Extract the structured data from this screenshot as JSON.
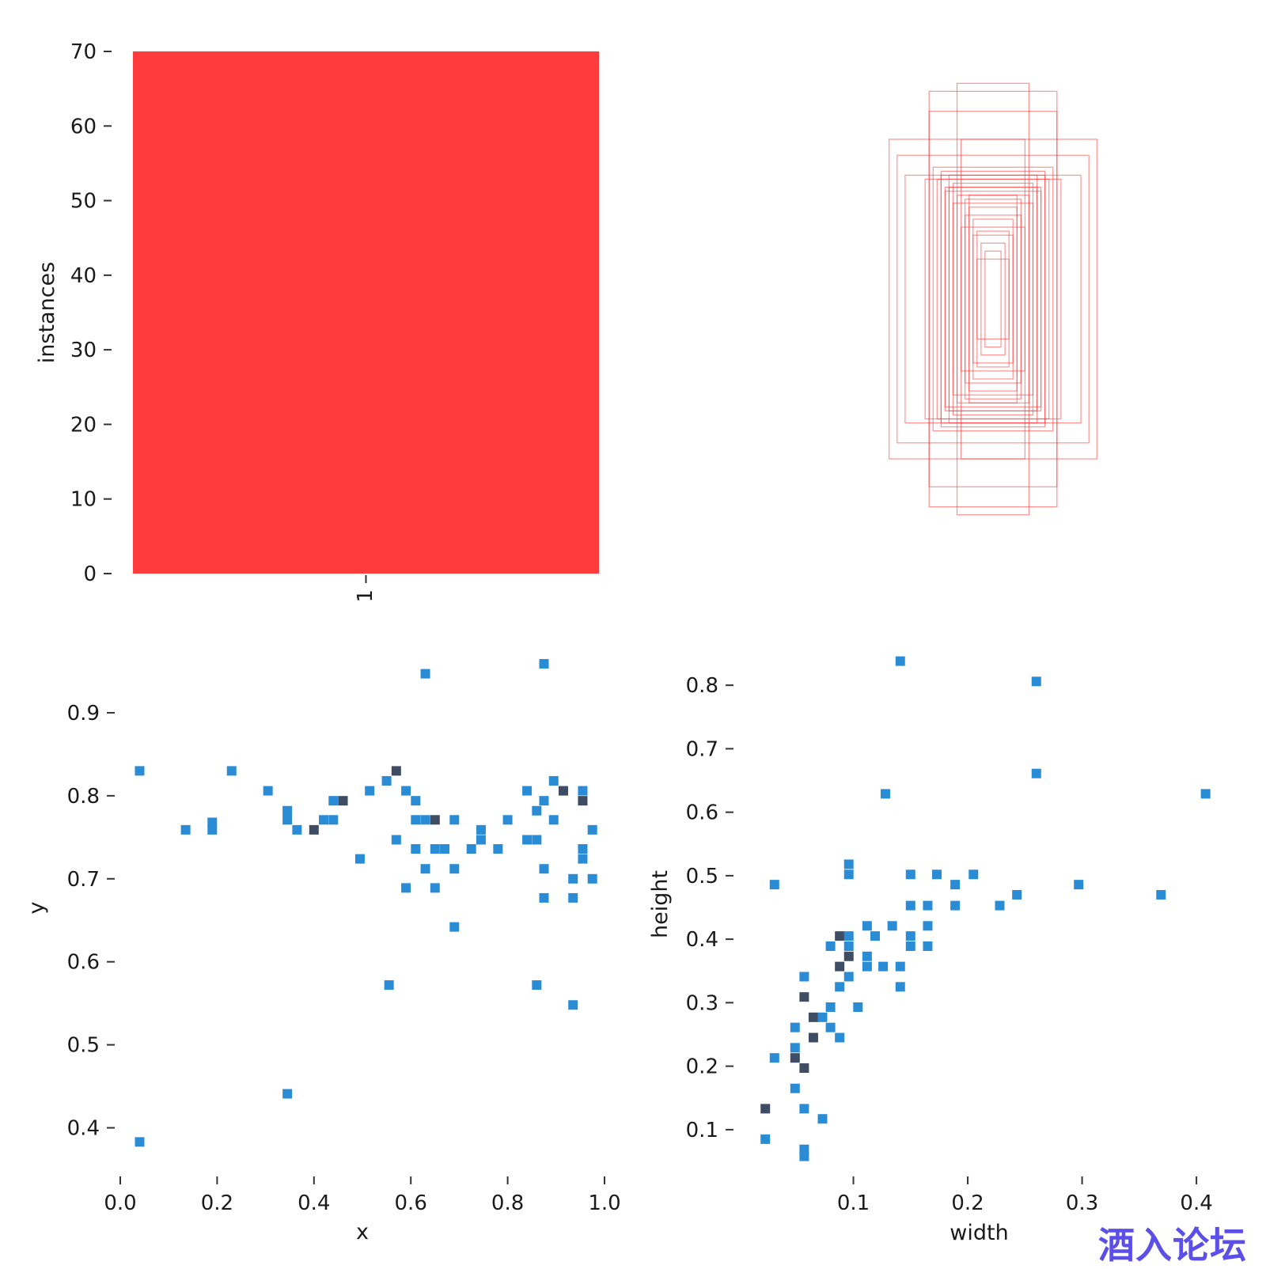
{
  "chart_data": [
    {
      "type": "bar",
      "categories": [
        "1"
      ],
      "values": [
        70
      ],
      "xlabel": "",
      "ylabel": "instances",
      "ylim": [
        0,
        70
      ],
      "yticks": [
        "0",
        "10",
        "20",
        "30",
        "40",
        "50",
        "60",
        "70"
      ],
      "color": "#ff3b3b",
      "grid": false
    },
    {
      "type": "box-overlay",
      "color": "#ff3b3b",
      "boxes": [
        {
          "w": 0.26,
          "h": 0.4
        },
        {
          "w": 0.24,
          "h": 0.36
        },
        {
          "w": 0.22,
          "h": 0.31
        },
        {
          "w": 0.16,
          "h": 0.52
        },
        {
          "w": 0.16,
          "h": 0.47
        },
        {
          "w": 0.09,
          "h": 0.54
        },
        {
          "w": 0.08,
          "h": 0.4
        },
        {
          "w": 0.12,
          "h": 0.28
        },
        {
          "w": 0.13,
          "h": 0.32
        },
        {
          "w": 0.11,
          "h": 0.31
        },
        {
          "w": 0.17,
          "h": 0.3
        },
        {
          "w": 0.14,
          "h": 0.3
        },
        {
          "w": 0.1,
          "h": 0.29
        },
        {
          "w": 0.09,
          "h": 0.26
        },
        {
          "w": 0.07,
          "h": 0.25
        },
        {
          "w": 0.06,
          "h": 0.26
        },
        {
          "w": 0.06,
          "h": 0.23
        },
        {
          "w": 0.05,
          "h": 0.2
        },
        {
          "w": 0.04,
          "h": 0.17
        },
        {
          "w": 0.03,
          "h": 0.14
        },
        {
          "w": 0.02,
          "h": 0.12
        },
        {
          "w": 0.12,
          "h": 0.27
        },
        {
          "w": 0.1,
          "h": 0.24
        },
        {
          "w": 0.07,
          "h": 0.21
        },
        {
          "w": 0.05,
          "h": 0.16
        },
        {
          "w": 0.04,
          "h": 0.1
        },
        {
          "w": 0.08,
          "h": 0.18
        },
        {
          "w": 0.15,
          "h": 0.33
        },
        {
          "w": 0.13,
          "h": 0.31
        },
        {
          "w": 0.11,
          "h": 0.28
        }
      ]
    },
    {
      "type": "heatmap",
      "xlabel": "x",
      "ylabel": "y",
      "xlim": [
        0.0,
        1.0
      ],
      "ylim": [
        0.35,
        0.98
      ],
      "xticks": [
        "0.0",
        "0.2",
        "0.4",
        "0.6",
        "0.8",
        "1.0"
      ],
      "yticks": [
        "0.4",
        "0.5",
        "0.6",
        "0.7",
        "0.8",
        "0.9"
      ],
      "colors": {
        "low": "#2b8cd6",
        "high": "#3e4d63"
      },
      "cells": [
        {
          "x": 0.04,
          "y": 0.83,
          "c": 1
        },
        {
          "x": 0.04,
          "y": 0.383,
          "c": 1
        },
        {
          "x": 0.135,
          "y": 0.759,
          "c": 1
        },
        {
          "x": 0.19,
          "y": 0.759,
          "c": 1
        },
        {
          "x": 0.19,
          "y": 0.768,
          "c": 1
        },
        {
          "x": 0.23,
          "y": 0.83,
          "c": 1
        },
        {
          "x": 0.305,
          "y": 0.806,
          "c": 1
        },
        {
          "x": 0.345,
          "y": 0.782,
          "c": 1
        },
        {
          "x": 0.345,
          "y": 0.771,
          "c": 1
        },
        {
          "x": 0.345,
          "y": 0.441,
          "c": 1
        },
        {
          "x": 0.365,
          "y": 0.759,
          "c": 1
        },
        {
          "x": 0.4,
          "y": 0.759,
          "c": 2
        },
        {
          "x": 0.42,
          "y": 0.771,
          "c": 1
        },
        {
          "x": 0.44,
          "y": 0.771,
          "c": 1
        },
        {
          "x": 0.44,
          "y": 0.794,
          "c": 1
        },
        {
          "x": 0.46,
          "y": 0.794,
          "c": 2
        },
        {
          "x": 0.495,
          "y": 0.724,
          "c": 1
        },
        {
          "x": 0.515,
          "y": 0.806,
          "c": 1
        },
        {
          "x": 0.55,
          "y": 0.818,
          "c": 1
        },
        {
          "x": 0.555,
          "y": 0.572,
          "c": 1
        },
        {
          "x": 0.57,
          "y": 0.83,
          "c": 2
        },
        {
          "x": 0.57,
          "y": 0.747,
          "c": 1
        },
        {
          "x": 0.59,
          "y": 0.806,
          "c": 1
        },
        {
          "x": 0.59,
          "y": 0.689,
          "c": 1
        },
        {
          "x": 0.61,
          "y": 0.794,
          "c": 1
        },
        {
          "x": 0.61,
          "y": 0.771,
          "c": 1
        },
        {
          "x": 0.61,
          "y": 0.736,
          "c": 1
        },
        {
          "x": 0.63,
          "y": 0.771,
          "c": 1
        },
        {
          "x": 0.63,
          "y": 0.712,
          "c": 1
        },
        {
          "x": 0.63,
          "y": 0.947,
          "c": 1
        },
        {
          "x": 0.65,
          "y": 0.771,
          "c": 2
        },
        {
          "x": 0.65,
          "y": 0.736,
          "c": 1
        },
        {
          "x": 0.65,
          "y": 0.689,
          "c": 1
        },
        {
          "x": 0.67,
          "y": 0.736,
          "c": 1
        },
        {
          "x": 0.69,
          "y": 0.771,
          "c": 1
        },
        {
          "x": 0.69,
          "y": 0.712,
          "c": 1
        },
        {
          "x": 0.69,
          "y": 0.642,
          "c": 1
        },
        {
          "x": 0.725,
          "y": 0.736,
          "c": 1
        },
        {
          "x": 0.745,
          "y": 0.759,
          "c": 1
        },
        {
          "x": 0.745,
          "y": 0.747,
          "c": 1
        },
        {
          "x": 0.78,
          "y": 0.736,
          "c": 1
        },
        {
          "x": 0.8,
          "y": 0.771,
          "c": 1
        },
        {
          "x": 0.84,
          "y": 0.806,
          "c": 1
        },
        {
          "x": 0.84,
          "y": 0.747,
          "c": 1
        },
        {
          "x": 0.86,
          "y": 0.747,
          "c": 1
        },
        {
          "x": 0.86,
          "y": 0.782,
          "c": 1
        },
        {
          "x": 0.86,
          "y": 0.572,
          "c": 1
        },
        {
          "x": 0.875,
          "y": 0.959,
          "c": 1
        },
        {
          "x": 0.875,
          "y": 0.794,
          "c": 1
        },
        {
          "x": 0.875,
          "y": 0.712,
          "c": 1
        },
        {
          "x": 0.875,
          "y": 0.677,
          "c": 1
        },
        {
          "x": 0.895,
          "y": 0.818,
          "c": 1
        },
        {
          "x": 0.895,
          "y": 0.771,
          "c": 1
        },
        {
          "x": 0.915,
          "y": 0.806,
          "c": 2
        },
        {
          "x": 0.935,
          "y": 0.7,
          "c": 1
        },
        {
          "x": 0.935,
          "y": 0.677,
          "c": 1
        },
        {
          "x": 0.935,
          "y": 0.548,
          "c": 1
        },
        {
          "x": 0.955,
          "y": 0.806,
          "c": 1
        },
        {
          "x": 0.955,
          "y": 0.794,
          "c": 2
        },
        {
          "x": 0.955,
          "y": 0.736,
          "c": 1
        },
        {
          "x": 0.955,
          "y": 0.724,
          "c": 1
        },
        {
          "x": 0.975,
          "y": 0.759,
          "c": 1
        },
        {
          "x": 0.975,
          "y": 0.7,
          "c": 1
        }
      ]
    },
    {
      "type": "heatmap",
      "xlabel": "width",
      "ylabel": "height",
      "xlim": [
        0.0,
        0.42
      ],
      "ylim": [
        0.05,
        0.86
      ],
      "xticks": [
        "0.1",
        "0.2",
        "0.3",
        "0.4"
      ],
      "yticks": [
        "0.1",
        "0.2",
        "0.3",
        "0.4",
        "0.5",
        "0.6",
        "0.7",
        "0.8"
      ],
      "colors": {
        "low": "#2b8cd6",
        "high": "#3e4d63"
      },
      "cells": [
        {
          "x": 0.141,
          "y": 0.838,
          "c": 1
        },
        {
          "x": 0.26,
          "y": 0.806,
          "c": 1
        },
        {
          "x": 0.26,
          "y": 0.661,
          "c": 1
        },
        {
          "x": 0.128,
          "y": 0.629,
          "c": 1
        },
        {
          "x": 0.408,
          "y": 0.629,
          "c": 1
        },
        {
          "x": 0.031,
          "y": 0.486,
          "c": 1
        },
        {
          "x": 0.096,
          "y": 0.518,
          "c": 1
        },
        {
          "x": 0.096,
          "y": 0.502,
          "c": 1
        },
        {
          "x": 0.15,
          "y": 0.502,
          "c": 1
        },
        {
          "x": 0.173,
          "y": 0.502,
          "c": 1
        },
        {
          "x": 0.205,
          "y": 0.502,
          "c": 1
        },
        {
          "x": 0.189,
          "y": 0.486,
          "c": 1
        },
        {
          "x": 0.297,
          "y": 0.486,
          "c": 1
        },
        {
          "x": 0.243,
          "y": 0.47,
          "c": 1
        },
        {
          "x": 0.369,
          "y": 0.47,
          "c": 1
        },
        {
          "x": 0.15,
          "y": 0.453,
          "c": 1
        },
        {
          "x": 0.165,
          "y": 0.453,
          "c": 1
        },
        {
          "x": 0.189,
          "y": 0.453,
          "c": 1
        },
        {
          "x": 0.228,
          "y": 0.453,
          "c": 1
        },
        {
          "x": 0.112,
          "y": 0.421,
          "c": 1
        },
        {
          "x": 0.134,
          "y": 0.421,
          "c": 1
        },
        {
          "x": 0.165,
          "y": 0.421,
          "c": 1
        },
        {
          "x": 0.088,
          "y": 0.405,
          "c": 2
        },
        {
          "x": 0.096,
          "y": 0.405,
          "c": 1
        },
        {
          "x": 0.119,
          "y": 0.405,
          "c": 1
        },
        {
          "x": 0.15,
          "y": 0.405,
          "c": 1
        },
        {
          "x": 0.08,
          "y": 0.389,
          "c": 1
        },
        {
          "x": 0.096,
          "y": 0.389,
          "c": 1
        },
        {
          "x": 0.15,
          "y": 0.389,
          "c": 1
        },
        {
          "x": 0.165,
          "y": 0.389,
          "c": 1
        },
        {
          "x": 0.096,
          "y": 0.373,
          "c": 2
        },
        {
          "x": 0.112,
          "y": 0.373,
          "c": 1
        },
        {
          "x": 0.088,
          "y": 0.357,
          "c": 2
        },
        {
          "x": 0.112,
          "y": 0.357,
          "c": 1
        },
        {
          "x": 0.126,
          "y": 0.357,
          "c": 1
        },
        {
          "x": 0.141,
          "y": 0.357,
          "c": 1
        },
        {
          "x": 0.057,
          "y": 0.341,
          "c": 1
        },
        {
          "x": 0.096,
          "y": 0.341,
          "c": 1
        },
        {
          "x": 0.088,
          "y": 0.325,
          "c": 1
        },
        {
          "x": 0.141,
          "y": 0.325,
          "c": 1
        },
        {
          "x": 0.057,
          "y": 0.309,
          "c": 2
        },
        {
          "x": 0.08,
          "y": 0.293,
          "c": 1
        },
        {
          "x": 0.104,
          "y": 0.293,
          "c": 1
        },
        {
          "x": 0.065,
          "y": 0.277,
          "c": 2
        },
        {
          "x": 0.073,
          "y": 0.277,
          "c": 1
        },
        {
          "x": 0.049,
          "y": 0.261,
          "c": 1
        },
        {
          "x": 0.08,
          "y": 0.261,
          "c": 1
        },
        {
          "x": 0.065,
          "y": 0.245,
          "c": 2
        },
        {
          "x": 0.088,
          "y": 0.245,
          "c": 1
        },
        {
          "x": 0.049,
          "y": 0.229,
          "c": 1
        },
        {
          "x": 0.031,
          "y": 0.213,
          "c": 1
        },
        {
          "x": 0.049,
          "y": 0.213,
          "c": 2
        },
        {
          "x": 0.057,
          "y": 0.197,
          "c": 2
        },
        {
          "x": 0.049,
          "y": 0.165,
          "c": 1
        },
        {
          "x": 0.023,
          "y": 0.133,
          "c": 2
        },
        {
          "x": 0.057,
          "y": 0.133,
          "c": 1
        },
        {
          "x": 0.073,
          "y": 0.117,
          "c": 1
        },
        {
          "x": 0.023,
          "y": 0.085,
          "c": 1
        },
        {
          "x": 0.057,
          "y": 0.069,
          "c": 1
        },
        {
          "x": 0.057,
          "y": 0.058,
          "c": 1
        }
      ]
    }
  ],
  "watermark": "酒入论坛"
}
